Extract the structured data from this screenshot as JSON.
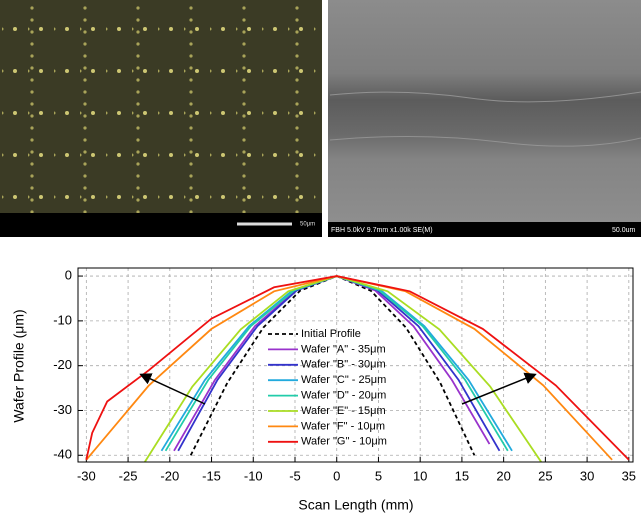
{
  "images": {
    "left": {
      "scale_label": "50μm"
    },
    "right": {
      "caption": "FBH 5.0kV 9.7mm x1.00k SE(M)",
      "scale_label": "50.0um"
    }
  },
  "chart_data": {
    "type": "line",
    "xlabel": "Scan Length (mm)",
    "ylabel": "Wafer Profile (μm)",
    "xlim": [
      -31,
      35.5
    ],
    "ylim": [
      -41.5,
      1.8
    ],
    "xticks": [
      -30,
      -25,
      -20,
      -15,
      -10,
      -5,
      0,
      5,
      10,
      15,
      20,
      25,
      30,
      35
    ],
    "yticks": [
      0,
      -10,
      -20,
      -30,
      -40
    ],
    "grid": true,
    "series": [
      {
        "name": "Initial Profile",
        "color": "#000000",
        "line_style": "dashed",
        "x": [
          -17.5,
          -13.1,
          -8.8,
          -4.4,
          0,
          4.1,
          8.3,
          12.4,
          16.5
        ],
        "values": [
          -40,
          -23.8,
          -11.5,
          -3.3,
          0,
          -3.3,
          -11.5,
          -23.8,
          -40
        ]
      },
      {
        "name": "Wafer \"A\" - 35μm",
        "color": "#9933cc",
        "line_style": "solid",
        "x": [
          -19.5,
          -14.6,
          -9.8,
          -4.9,
          0,
          4.6,
          9.2,
          13.8,
          18.3
        ],
        "values": [
          -39,
          -23.2,
          -11.2,
          -3.2,
          0,
          -3.2,
          -11.2,
          -23.2,
          -37.5
        ]
      },
      {
        "name": "Wafer \"B\" - 30μm",
        "color": "#3333cc",
        "line_style": "solid",
        "x": [
          -19,
          -14.3,
          -9.5,
          -4.8,
          0,
          4.9,
          9.8,
          14.6,
          19.5
        ],
        "values": [
          -39,
          -23.2,
          -11.2,
          -3.2,
          0,
          -3.2,
          -11.2,
          -23.2,
          -39
        ]
      },
      {
        "name": "Wafer \"C\" - 25μm",
        "color": "#22aadd",
        "line_style": "solid",
        "x": [
          -21,
          -15.8,
          -10.5,
          -5.3,
          0,
          5.3,
          10.5,
          15.8,
          21
        ],
        "values": [
          -39,
          -23.2,
          -11.2,
          -3.2,
          0,
          -3.2,
          -11.2,
          -23.2,
          -39
        ]
      },
      {
        "name": "Wafer \"D\" - 20μm",
        "color": "#22ccaa",
        "line_style": "solid",
        "x": [
          -20.5,
          -15.4,
          -10.3,
          -5.1,
          0,
          5.1,
          10.3,
          15.4,
          20.5
        ],
        "values": [
          -39,
          -23.2,
          -11.2,
          -3.2,
          0,
          -3.2,
          -11.2,
          -23.2,
          -39
        ]
      },
      {
        "name": "Wafer \"E\" - 15μm",
        "color": "#aadd22",
        "line_style": "solid",
        "x": [
          -23,
          -17.3,
          -11.5,
          -5.8,
          0,
          6.1,
          12.3,
          18.4,
          24.5
        ],
        "values": [
          -41.5,
          -24.7,
          -11.9,
          -3.4,
          0,
          -3.4,
          -11.9,
          -24.7,
          -41.5
        ]
      },
      {
        "name": "Wafer \"F\" - 10μm",
        "color": "#ff8811",
        "line_style": "solid",
        "x": [
          -30,
          -22.5,
          -15,
          -7.5,
          0,
          8.25,
          16.5,
          24.75,
          33
        ],
        "values": [
          -41,
          -24.4,
          -11.8,
          -3.4,
          0,
          -3.4,
          -11.8,
          -24.4,
          -41
        ]
      },
      {
        "name": "Wafer \"G\" - 10μm",
        "color": "#ee1111",
        "line_style": "solid",
        "x": [
          -30,
          -29.3,
          -27.5,
          -22.5,
          -15,
          -7.5,
          0,
          8.75,
          17.5,
          26.25,
          35
        ],
        "values": [
          -41,
          -35,
          -28,
          -21,
          -9.5,
          -2.5,
          0,
          -3.4,
          -11.8,
          -24.4,
          -41
        ]
      }
    ]
  }
}
